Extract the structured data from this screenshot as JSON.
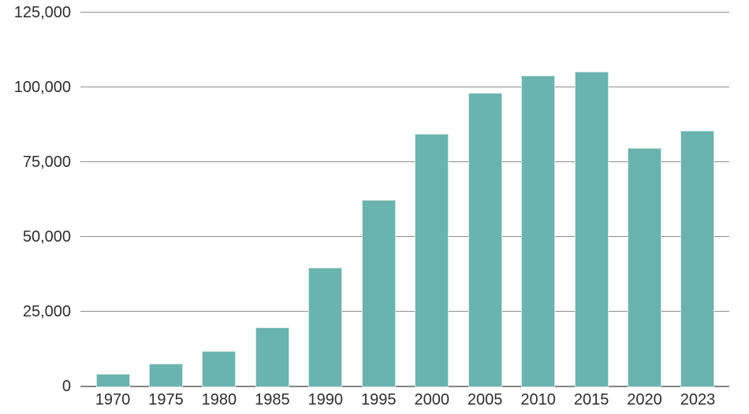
{
  "chart_data": {
    "type": "bar",
    "title": "",
    "xlabel": "",
    "ylabel": "",
    "categories": [
      "1970",
      "1975",
      "1980",
      "1985",
      "1990",
      "1995",
      "2000",
      "2005",
      "2010",
      "2015",
      "2020",
      "2023"
    ],
    "values": [
      4400,
      7900,
      12100,
      20000,
      40000,
      62600,
      84800,
      98400,
      104300,
      105400,
      80100,
      85700
    ],
    "ylim": [
      0,
      125000
    ],
    "yticks": [
      0,
      25000,
      50000,
      75000,
      100000,
      125000
    ],
    "ytick_labels": [
      "0",
      "25,000",
      "50,000",
      "75,000",
      "100,000",
      "125,000"
    ],
    "grid": true,
    "legend": "none",
    "colors": {
      "bar_fill": "#6bb3ae",
      "bar_edge": "#cfe8e5",
      "gridline": "#8e8e8e",
      "zero_line": "#868686",
      "label_text": "#2e2e2e",
      "background": "#ffffff"
    }
  }
}
